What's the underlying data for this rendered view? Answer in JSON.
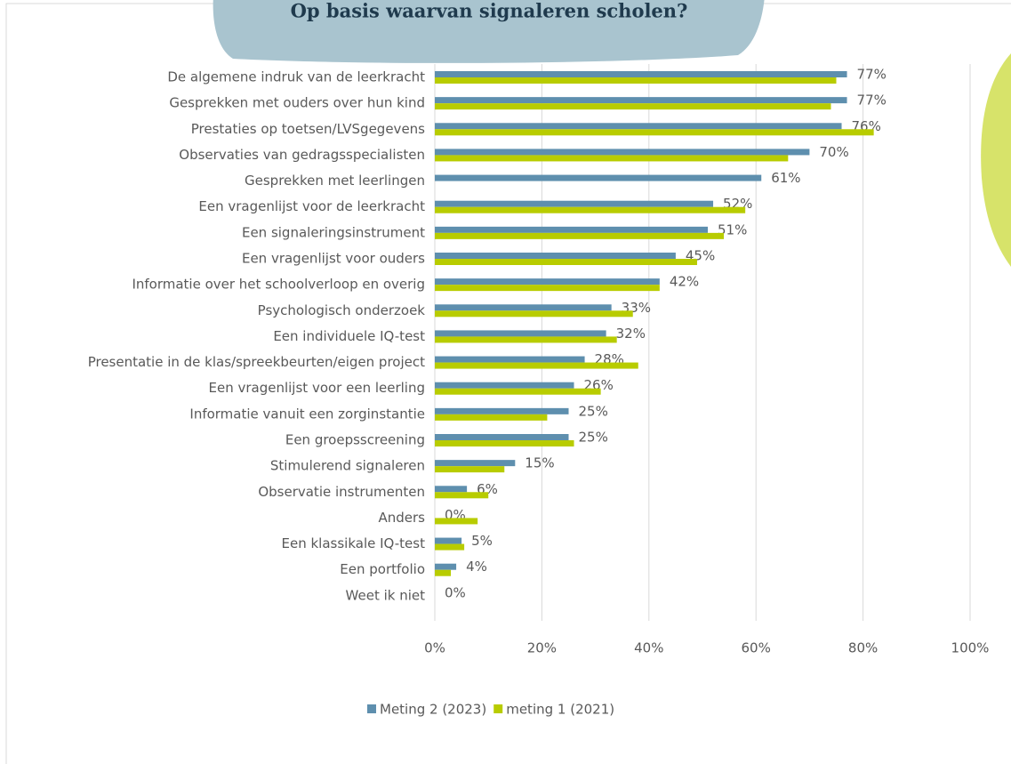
{
  "chart_data": {
    "type": "hbar",
    "title": "Op basis waarvan signaleren scholen?",
    "categories": [
      "De algemene indruk van de leerkracht",
      "Gesprekken met ouders over hun kind",
      "Prestaties op toetsen/LVSgegevens",
      "Observaties van gedragsspecialisten",
      "Gesprekken met leerlingen",
      "Een vragenlijst voor de leerkracht",
      "Een signaleringsinstrument",
      "Een vragenlijst voor ouders",
      "Informatie over het schoolverloop en overig",
      "Psychologisch onderzoek",
      "Een individuele IQ-test",
      "Presentatie in de klas/spreekbeurten/eigen project",
      "Een vragenlijst voor een leerling",
      "Informatie vanuit een zorginstantie",
      "Een groepsscreening",
      "Stimulerend signaleren",
      "Observatie instrumenten",
      "Anders",
      "Een klassikale IQ-test",
      "Een portfolio",
      "Weet ik niet"
    ],
    "series": [
      {
        "name": "Meting 2 (2023)",
        "color": "#5e8fae",
        "values": [
          77,
          77,
          76,
          70,
          61,
          52,
          51,
          45,
          42,
          33,
          32,
          28,
          26,
          25,
          25,
          15,
          6,
          0,
          5,
          4,
          0
        ],
        "value_labels": [
          "77%",
          "77%",
          "76%",
          "70%",
          "61%",
          "52%",
          "51%",
          "45%",
          "42%",
          "33%",
          "32%",
          "28%",
          "26%",
          "25%",
          "25%",
          "15%",
          "6%",
          "0%",
          "5%",
          "4%",
          "0%"
        ]
      },
      {
        "name": "meting 1 (2021)",
        "color": "#b8cc00",
        "values": [
          75,
          74,
          82,
          66,
          null,
          58,
          54,
          49,
          42,
          37,
          34,
          38,
          31,
          21,
          26,
          13,
          10,
          8,
          5.5,
          3,
          0
        ]
      }
    ],
    "xlim": [
      0,
      100
    ],
    "xticks": [
      {
        "value": 0,
        "label": "0%"
      },
      {
        "value": 20,
        "label": "20%"
      },
      {
        "value": 40,
        "label": "40%"
      },
      {
        "value": 60,
        "label": "60%"
      },
      {
        "value": 80,
        "label": "80%"
      },
      {
        "value": 100,
        "label": "100%"
      }
    ],
    "grid": true
  }
}
